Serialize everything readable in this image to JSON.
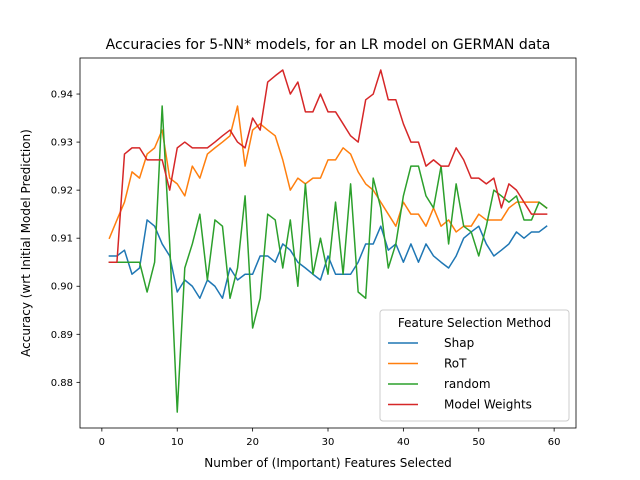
{
  "chart_data": {
    "type": "line",
    "title": "Accuracies for 5-NN* models, for an LR model on GERMAN data",
    "xlabel": "Number of (Important) Features Selected",
    "ylabel": "Accuracy (wrt Initial Model Prediction)",
    "xlim": [
      -2.9,
      62.9
    ],
    "ylim": [
      0.8705,
      0.9475
    ],
    "xticks": [
      0,
      10,
      20,
      30,
      40,
      50,
      60
    ],
    "yticks": [
      0.88,
      0.89,
      0.9,
      0.91,
      0.92,
      0.93,
      0.94
    ],
    "ytick_labels": [
      "0.88",
      "0.89",
      "0.90",
      "0.91",
      "0.92",
      "0.93",
      "0.94"
    ],
    "grid": false,
    "legend": {
      "title": "Feature Selection Method",
      "placement": "lower right"
    },
    "x": [
      1,
      2,
      3,
      4,
      5,
      6,
      7,
      8,
      9,
      10,
      11,
      12,
      13,
      14,
      15,
      16,
      17,
      18,
      19,
      20,
      21,
      22,
      23,
      24,
      25,
      26,
      27,
      28,
      29,
      30,
      31,
      32,
      33,
      34,
      35,
      36,
      37,
      38,
      39,
      40,
      41,
      42,
      43,
      44,
      45,
      46,
      47,
      48,
      49,
      50,
      51,
      52,
      53,
      54,
      55,
      56,
      57,
      58,
      59
    ],
    "series": [
      {
        "name": "Shap",
        "color": "#1f77b4",
        "values": [
          0.9063,
          0.9063,
          0.9075,
          0.9025,
          0.9038,
          0.9138,
          0.9125,
          0.9088,
          0.9063,
          0.8988,
          0.9013,
          0.9,
          0.8975,
          0.9013,
          0.9,
          0.8975,
          0.9038,
          0.9013,
          0.9025,
          0.9025,
          0.9063,
          0.9063,
          0.905,
          0.9088,
          0.9075,
          0.905,
          0.9038,
          0.9025,
          0.9013,
          0.9063,
          0.9025,
          0.9025,
          0.9025,
          0.905,
          0.9088,
          0.9088,
          0.9125,
          0.9075,
          0.9088,
          0.905,
          0.9088,
          0.905,
          0.9088,
          0.9063,
          0.905,
          0.9038,
          0.9063,
          0.91,
          0.9113,
          0.9125,
          0.9088,
          0.9063,
          0.9075,
          0.9088,
          0.9113,
          0.91,
          0.9113,
          0.9113,
          0.9125
        ]
      },
      {
        "name": "RoT",
        "color": "#ff7f0e",
        "values": [
          0.91,
          0.9138,
          0.9175,
          0.9238,
          0.9225,
          0.9275,
          0.9288,
          0.9325,
          0.9225,
          0.9213,
          0.9188,
          0.925,
          0.9225,
          0.9275,
          0.9288,
          0.93,
          0.9313,
          0.9375,
          0.925,
          0.9325,
          0.9338,
          0.9325,
          0.9313,
          0.9263,
          0.92,
          0.9225,
          0.9213,
          0.9225,
          0.9225,
          0.9263,
          0.9263,
          0.9288,
          0.9275,
          0.9238,
          0.9213,
          0.92,
          0.9175,
          0.915,
          0.9125,
          0.9175,
          0.915,
          0.915,
          0.9125,
          0.9163,
          0.9125,
          0.9138,
          0.9113,
          0.9125,
          0.9125,
          0.915,
          0.9138,
          0.9138,
          0.9138,
          0.9163,
          0.9175,
          0.9175,
          0.9175,
          0.9175,
          0.9163
        ]
      },
      {
        "name": "random",
        "color": "#2ca02c",
        "values": [
          0.905,
          0.905,
          0.905,
          0.905,
          0.905,
          0.8988,
          0.905,
          0.9375,
          0.9088,
          0.8738,
          0.9038,
          0.9088,
          0.915,
          0.9013,
          0.9138,
          0.9125,
          0.8975,
          0.9038,
          0.9188,
          0.8913,
          0.8975,
          0.915,
          0.9138,
          0.9038,
          0.9138,
          0.9,
          0.9213,
          0.9025,
          0.91,
          0.9025,
          0.9175,
          0.9025,
          0.9213,
          0.8988,
          0.8975,
          0.9225,
          0.9163,
          0.9038,
          0.9088,
          0.9188,
          0.925,
          0.925,
          0.9188,
          0.9163,
          0.925,
          0.9088,
          0.9213,
          0.9125,
          0.9113,
          0.9063,
          0.9125,
          0.92,
          0.9188,
          0.9175,
          0.9188,
          0.9138,
          0.9138,
          0.9175,
          0.9163
        ]
      },
      {
        "name": "Model Weights",
        "color": "#d62728",
        "values": [
          0.905,
          0.905,
          0.9275,
          0.9288,
          0.9288,
          0.9263,
          0.9263,
          0.9263,
          0.92,
          0.9288,
          0.93,
          0.9288,
          0.9288,
          0.9288,
          0.93,
          0.9313,
          0.9325,
          0.93,
          0.9288,
          0.935,
          0.9325,
          0.9425,
          0.9438,
          0.945,
          0.94,
          0.9425,
          0.9363,
          0.9363,
          0.94,
          0.9363,
          0.9363,
          0.9338,
          0.9313,
          0.93,
          0.9388,
          0.94,
          0.945,
          0.9388,
          0.9388,
          0.9338,
          0.93,
          0.93,
          0.925,
          0.9263,
          0.925,
          0.925,
          0.9288,
          0.9263,
          0.9225,
          0.9225,
          0.9213,
          0.9225,
          0.9163,
          0.9213,
          0.92,
          0.9175,
          0.915,
          0.915,
          0.915
        ]
      }
    ]
  }
}
